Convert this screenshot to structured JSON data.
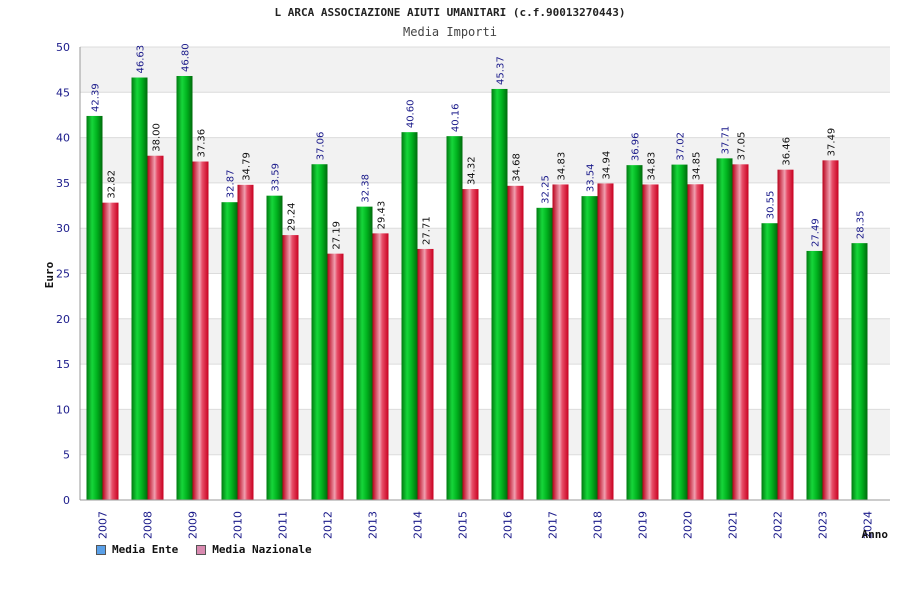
{
  "chart_data": {
    "type": "bar",
    "title": "L ARCA ASSOCIAZIONE AIUTI UMANITARI (c.f.90013270443)",
    "subtitle": "Media Importi",
    "xlabel": "Anno",
    "ylabel": "Euro",
    "ylim": [
      0,
      50
    ],
    "yticks": [
      0,
      5,
      10,
      15,
      20,
      25,
      30,
      35,
      40,
      45,
      50
    ],
    "grid": true,
    "legend_position": "bottom-left",
    "categories": [
      "2007",
      "2008",
      "2009",
      "2010",
      "2011",
      "2012",
      "2013",
      "2014",
      "2015",
      "2016",
      "2017",
      "2018",
      "2019",
      "2020",
      "2021",
      "2022",
      "2023",
      "2024"
    ],
    "series": [
      {
        "name": "Media Ente",
        "color": "#00b21e",
        "legend_color": "#5aa0e8",
        "values": [
          42.39,
          46.63,
          46.8,
          32.87,
          33.59,
          37.06,
          32.38,
          40.6,
          40.16,
          45.37,
          32.25,
          33.54,
          36.96,
          37.02,
          37.71,
          30.55,
          27.49,
          28.35
        ],
        "labels": [
          "42.39",
          "46.63",
          "46.80",
          "32.87",
          "33.59",
          "37.06",
          "32.38",
          "40.60",
          "40.16",
          "45.37",
          "32.25",
          "33.54",
          "36.96",
          "37.02",
          "37.71",
          "30.55",
          "27.49",
          "28.35"
        ]
      },
      {
        "name": "Media Nazionale",
        "color": "#e8203a",
        "legend_color": "#d98ab0",
        "values": [
          32.82,
          38.0,
          37.36,
          34.79,
          29.24,
          27.19,
          29.43,
          27.71,
          34.32,
          34.68,
          34.83,
          34.94,
          34.83,
          34.85,
          37.05,
          36.46,
          37.49,
          null
        ],
        "labels": [
          "32.82",
          "38.00",
          "37.36",
          "34.79",
          "29.24",
          "27.19",
          "29.43",
          "27.71",
          "34.32",
          "34.68",
          "34.83",
          "34.94",
          "34.83",
          "34.85",
          "37.05",
          "36.46",
          "37.49",
          null
        ]
      }
    ]
  }
}
